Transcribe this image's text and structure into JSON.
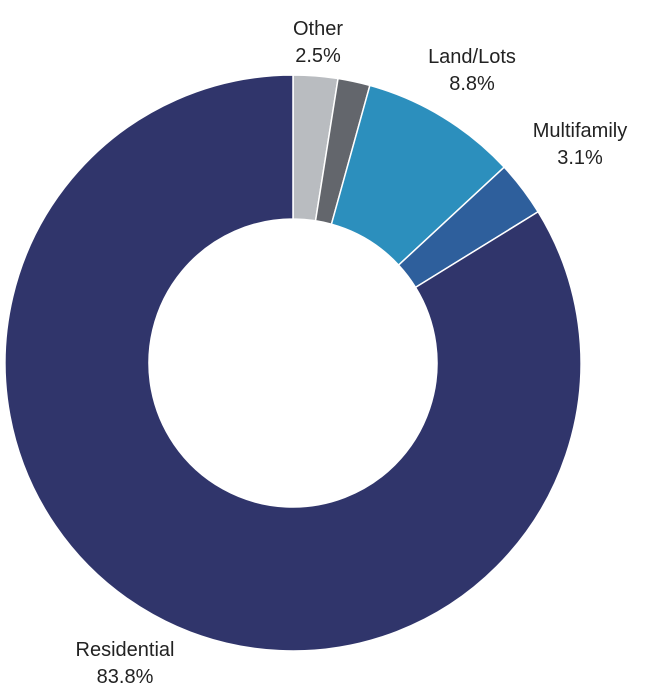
{
  "chart_data": {
    "type": "pie",
    "variant": "donut",
    "slices": [
      {
        "label": "Other",
        "value": 2.5,
        "value_label": "2.5%",
        "color": "#b9bcc0"
      },
      {
        "label": "",
        "value": 1.8,
        "value_label": "",
        "color": "#63666c"
      },
      {
        "label": "Land/Lots",
        "value": 8.8,
        "value_label": "8.8%",
        "color": "#2c8fbd"
      },
      {
        "label": "Multifamily",
        "value": 3.1,
        "value_label": "3.1%",
        "color": "#2e5f9c"
      },
      {
        "label": "Residential",
        "value": 83.8,
        "value_label": "83.8%",
        "color": "#30356b"
      }
    ]
  }
}
